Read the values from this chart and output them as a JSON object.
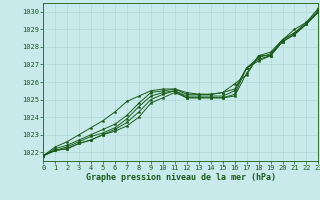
{
  "title": "Graphe pression niveau de la mer (hPa)",
  "bg_color": "#c8eaea",
  "grid_color": "#b0d8d8",
  "line_color": "#1a5c1a",
  "marker_color": "#1a5c1a",
  "xlim": [
    0,
    23
  ],
  "ylim": [
    1021.5,
    1030.5
  ],
  "xticks": [
    0,
    1,
    2,
    3,
    4,
    5,
    6,
    7,
    8,
    9,
    10,
    11,
    12,
    13,
    14,
    15,
    16,
    17,
    18,
    19,
    20,
    21,
    22,
    23
  ],
  "yticks": [
    1022,
    1023,
    1024,
    1025,
    1026,
    1027,
    1028,
    1029,
    1030
  ],
  "series": [
    [
      1021.8,
      1022.1,
      1022.2,
      1022.5,
      1022.7,
      1023.0,
      1023.2,
      1023.5,
      1024.0,
      1024.8,
      1025.1,
      1025.4,
      1025.1,
      1025.1,
      1025.1,
      1025.1,
      1025.2,
      1026.5,
      1027.5,
      1027.5,
      1028.3,
      1028.7,
      1029.3,
      1030.0
    ],
    [
      1021.8,
      1022.1,
      1022.2,
      1022.5,
      1022.7,
      1023.0,
      1023.3,
      1023.7,
      1024.3,
      1025.0,
      1025.3,
      1025.5,
      1025.1,
      1025.1,
      1025.1,
      1025.1,
      1025.3,
      1026.8,
      1027.2,
      1027.5,
      1028.3,
      1028.7,
      1029.3,
      1030.0
    ],
    [
      1021.8,
      1022.1,
      1022.3,
      1022.6,
      1022.9,
      1023.1,
      1023.4,
      1023.9,
      1024.6,
      1025.2,
      1025.4,
      1025.5,
      1025.2,
      1025.2,
      1025.2,
      1025.2,
      1025.5,
      1026.8,
      1027.3,
      1027.5,
      1028.4,
      1028.8,
      1029.3,
      1030.0
    ],
    [
      1021.8,
      1022.2,
      1022.4,
      1022.7,
      1023.0,
      1023.3,
      1023.6,
      1024.1,
      1024.8,
      1025.4,
      1025.5,
      1025.6,
      1025.3,
      1025.3,
      1025.3,
      1025.4,
      1025.6,
      1026.8,
      1027.4,
      1027.6,
      1028.4,
      1028.8,
      1029.4,
      1030.1
    ],
    [
      1021.8,
      1022.3,
      1022.6,
      1023.0,
      1023.4,
      1023.8,
      1024.3,
      1024.9,
      1025.2,
      1025.5,
      1025.6,
      1025.6,
      1025.4,
      1025.3,
      1025.3,
      1025.4,
      1025.9,
      1026.4,
      1027.5,
      1027.7,
      1028.4,
      1029.0,
      1029.4,
      1030.2
    ]
  ],
  "ylabel_fontsize": 5.5,
  "xlabel_fontsize": 6.0,
  "tick_fontsize": 5.0,
  "linewidth": 0.7,
  "markersize": 2.2
}
